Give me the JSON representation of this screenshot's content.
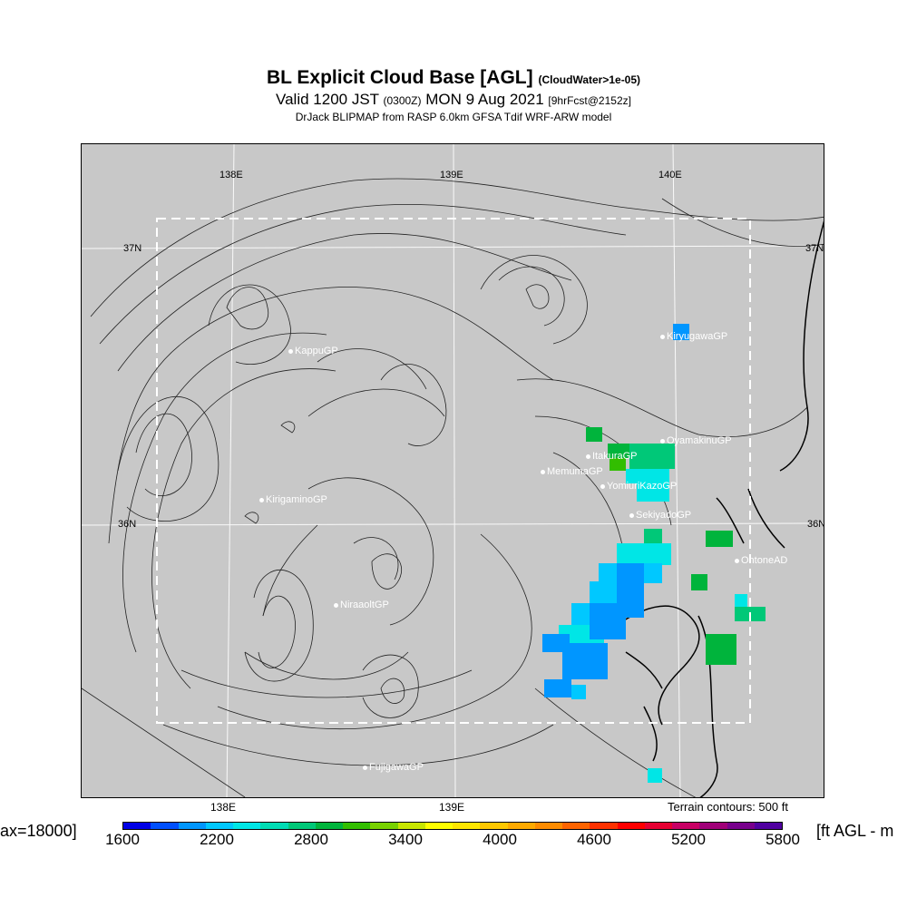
{
  "title": {
    "main": "BL Explicit Cloud Base [AGL]",
    "sub_note": "(CloudWater>1e-05)",
    "valid": "Valid 1200 JST",
    "utc": "(0300Z)",
    "date": "MON 9 Aug 2021",
    "fcst": "[9hrFcst@2152z]",
    "model": "DrJack BLIPMAP from RASP 6.0km GFSA Tdif WRF-ARW model"
  },
  "map": {
    "lon_labels_top": [
      "138E",
      "139E",
      "140E"
    ],
    "lon_labels_bottom": [
      "138E",
      "139E"
    ],
    "lat_labels_left": [
      "37N",
      "36N"
    ],
    "lat_labels_right": [
      "37N",
      "36N"
    ],
    "sites": [
      "KiryugawaGP",
      "KappuGP",
      "OyamakinuGP",
      "ItakuraGP",
      "MemumaGP",
      "YomiuriKazoGP",
      "KirigaminoGP",
      "SekiyadoGP",
      "OhtoneAD",
      "NiraaoltGP",
      "FujigawaGP"
    ],
    "terrain_note": "Terrain contours: 500 ft",
    "background_color": "#c8c8c8"
  },
  "colorbar": {
    "left_label": "ax=18000]",
    "right_label": "[ft AGL - m",
    "ticks": [
      "1600",
      "2200",
      "2800",
      "3400",
      "4000",
      "4600",
      "5200",
      "5800"
    ],
    "colors": [
      "#0000e6",
      "#0050ff",
      "#0096ff",
      "#00c8ff",
      "#00e6e6",
      "#00dcb4",
      "#00c878",
      "#00b43c",
      "#32be00",
      "#78d200",
      "#c8e600",
      "#ffff00",
      "#ffe600",
      "#ffc800",
      "#ffaa00",
      "#ff8c00",
      "#ff6400",
      "#ff3200",
      "#ff0000",
      "#e60032",
      "#c80064",
      "#a00078",
      "#78008c",
      "#5000a0"
    ]
  }
}
